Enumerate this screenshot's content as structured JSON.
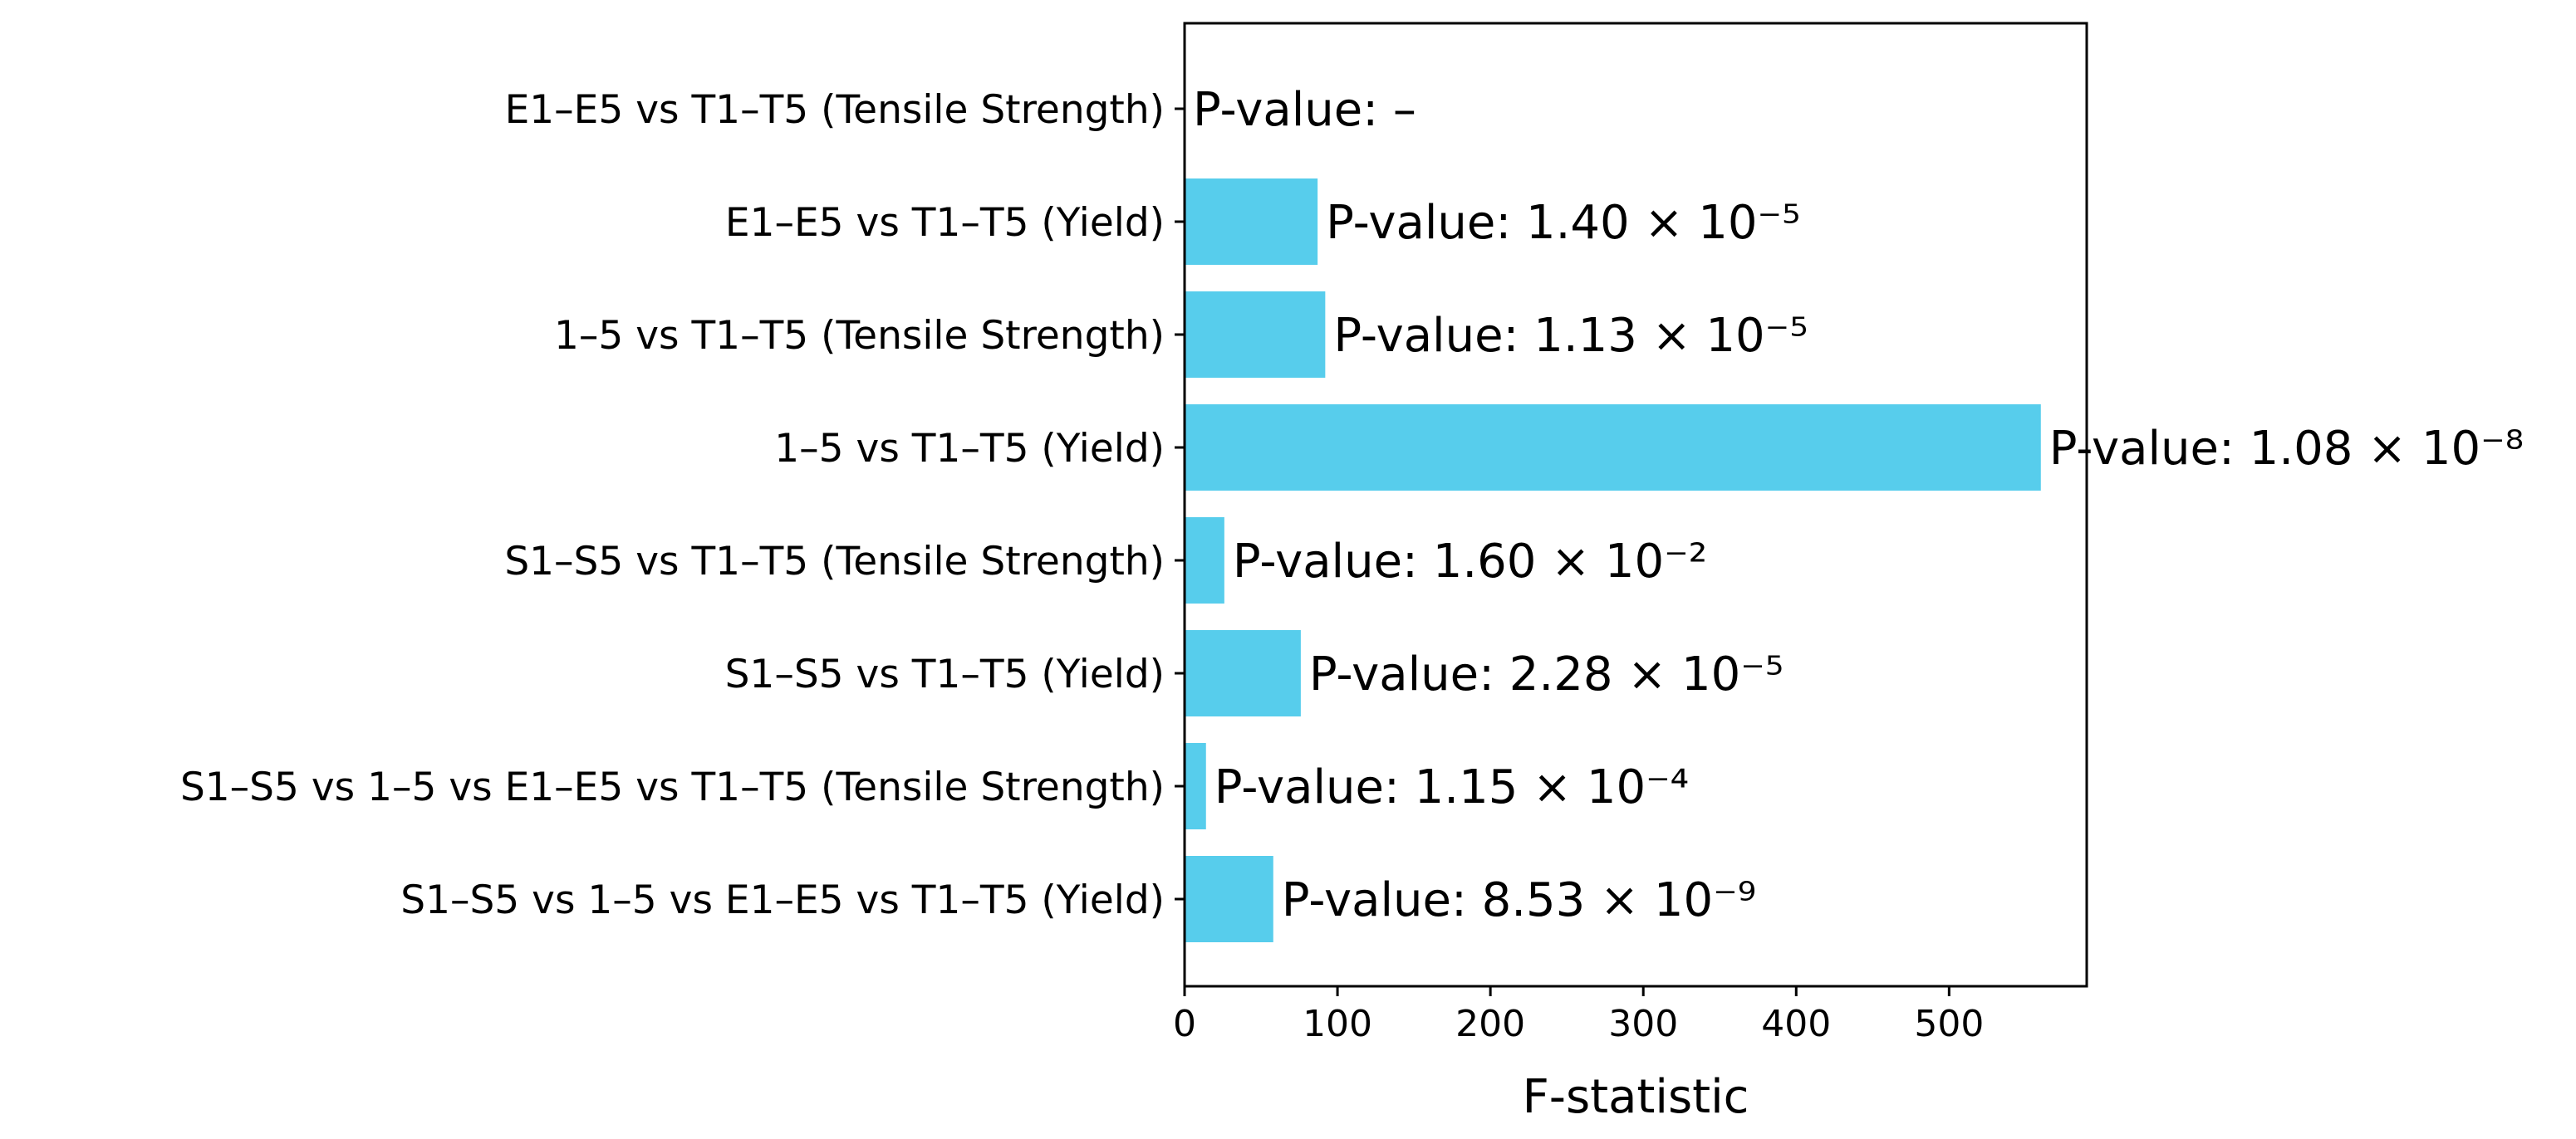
{
  "chart_data": {
    "type": "bar",
    "orientation": "horizontal",
    "title": "",
    "xlabel": "F-statistic",
    "ylabel": "",
    "xlim": [
      0,
      590
    ],
    "xticks": [
      0,
      100,
      200,
      300,
      400,
      500
    ],
    "grid": false,
    "bar_color": "#57cdec",
    "categories": [
      "E1–E5 vs T1–T5 (Tensile Strength)",
      "E1–E5 vs T1–T5 (Yield)",
      "1–5 vs T1–T5 (Tensile Strength)",
      "1–5 vs T1–T5 (Yield)",
      "S1–S5 vs T1–T5 (Tensile Strength)",
      "S1–S5 vs T1–T5 (Yield)",
      "S1–S5 vs 1–5 vs E1–E5 vs T1–T5 (Tensile Strength)",
      "S1–S5 vs 1–5 vs E1–E5 vs T1–T5 (Yield)"
    ],
    "values": [
      0,
      87,
      92,
      560,
      26,
      76,
      14,
      58
    ],
    "annotations": [
      "P-value: –",
      "P-value: 1.40 × 10⁻⁵",
      "P-value: 1.13 × 10⁻⁵",
      "P-value: 1.08 × 10⁻⁸",
      "P-value: 1.60 × 10⁻²",
      "P-value: 2.28 × 10⁻⁵",
      "P-value: 1.15 × 10⁻⁴",
      "P-value: 8.53 × 10⁻⁹"
    ]
  }
}
